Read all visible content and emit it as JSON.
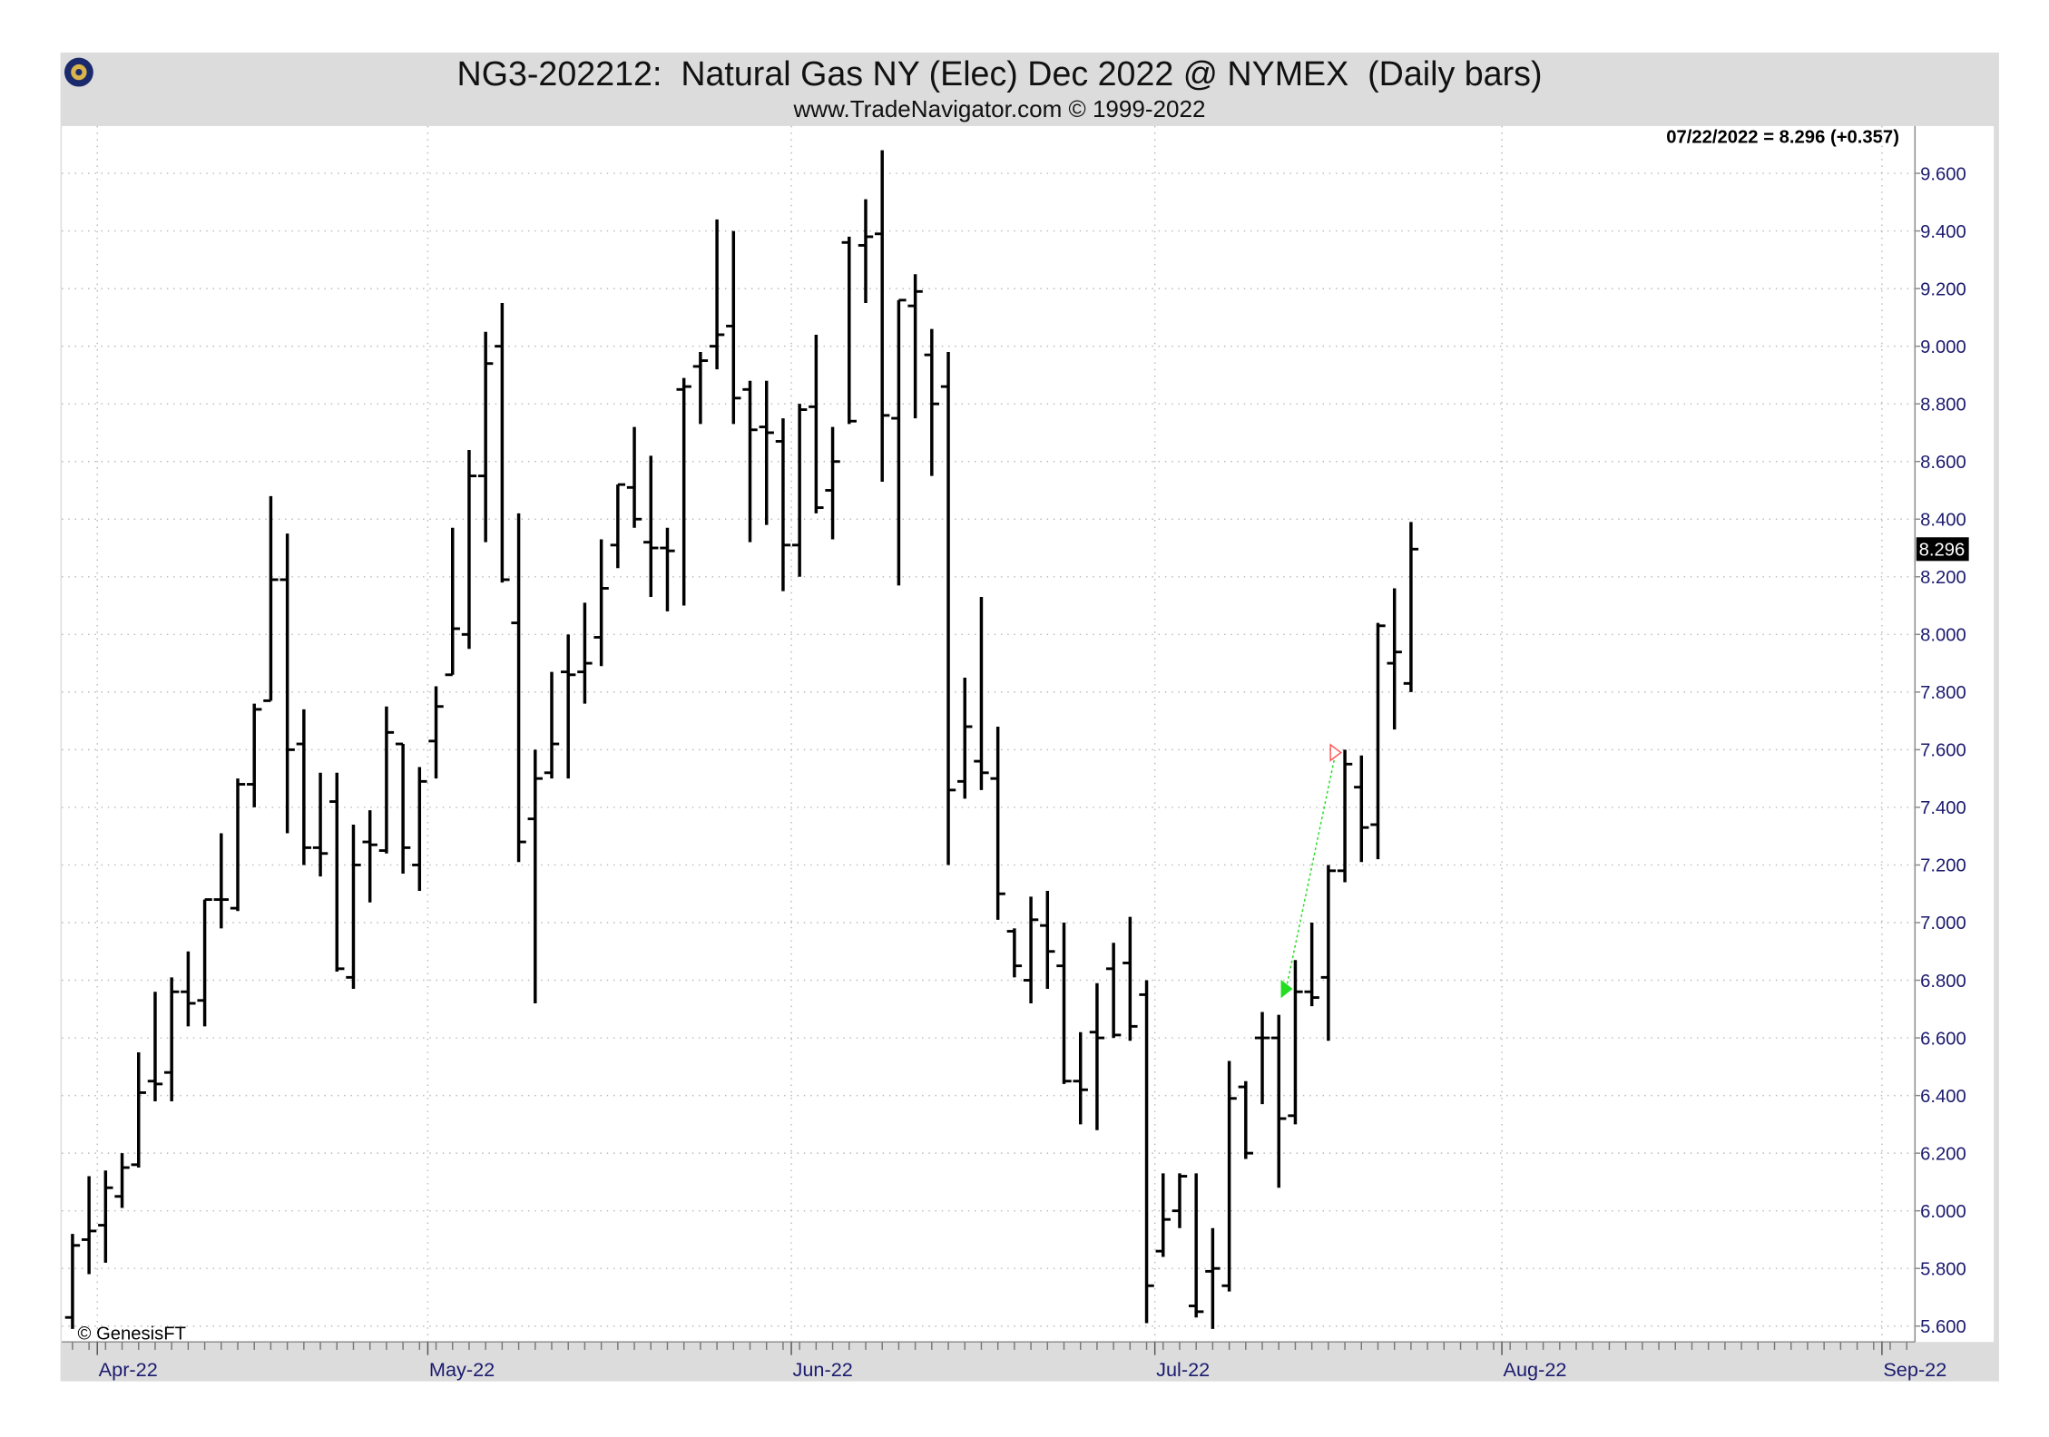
{
  "chart_data": {
    "type": "ohlc",
    "title": "NG3-202212:  Natural Gas NY (Elec) Dec 2022 @ NYMEX  (Daily bars)",
    "subtitle": "www.TradeNavigator.com © 1999-2022",
    "annotation": "07/22/2022 = 8.296 (+0.357)",
    "credit": "© GenesisFT",
    "color": "#000000",
    "grid": true,
    "categories": [
      null,
      null,
      "Apr-22",
      null,
      null,
      null,
      null,
      null,
      null,
      null,
      null,
      null,
      null,
      null,
      null,
      null,
      null,
      null,
      null,
      null,
      null,
      null,
      "May-22",
      null,
      null,
      null,
      null,
      null,
      null,
      null,
      null,
      null,
      null,
      null,
      null,
      null,
      null,
      null,
      null,
      null,
      null,
      null,
      null,
      null,
      "Jun-22",
      null,
      null,
      null,
      null,
      null,
      null,
      null,
      null,
      null,
      null,
      null,
      null,
      null,
      null,
      null,
      null,
      null,
      null,
      null,
      null,
      null,
      "Jul-22",
      null,
      null,
      null,
      null,
      null,
      null,
      null,
      null,
      null,
      null,
      null,
      null,
      null,
      null,
      null,
      null,
      null,
      null,
      null,
      null,
      "Aug-22",
      null,
      null,
      null,
      null,
      null,
      null,
      null,
      null,
      null,
      null,
      null,
      null,
      null,
      null,
      null,
      null,
      null,
      null,
      null,
      null,
      null,
      null,
      "Sep-22",
      null
    ],
    "open": [
      5.63,
      5.9,
      5.95,
      6.05,
      6.16,
      6.45,
      6.48,
      6.76,
      6.73,
      7.08,
      7.05,
      7.48,
      7.77,
      8.19,
      7.62,
      7.26,
      7.42,
      6.81,
      7.28,
      7.25,
      7.62,
      7.2,
      7.63,
      7.86,
      8.0,
      8.55,
      9.0,
      8.04,
      7.36,
      7.52,
      7.87,
      7.87,
      7.99,
      8.31,
      8.51,
      8.32,
      8.3,
      8.85,
      8.93,
      9.0,
      9.07,
      8.85,
      8.72,
      8.67,
      8.31,
      8.79,
      8.5,
      9.36,
      9.35,
      9.39,
      8.75,
      9.14,
      8.97,
      8.86,
      7.49,
      7.56,
      7.5,
      6.97,
      6.8,
      6.99,
      6.85,
      6.45,
      6.62,
      6.84,
      6.86,
      6.75,
      5.86,
      6.0,
      5.67,
      5.79,
      5.74,
      6.43,
      6.6,
      6.6,
      6.33,
      6.76,
      6.81,
      7.18,
      7.47,
      7.34,
      7.9,
      7.83,
      null,
      null,
      null,
      null,
      null,
      null,
      null,
      null,
      null,
      null,
      null,
      null,
      null,
      null,
      null,
      null,
      null,
      null,
      null,
      null,
      null,
      null,
      null,
      null,
      null,
      null,
      null,
      null,
      null,
      null
    ],
    "high": [
      5.92,
      6.12,
      6.14,
      6.2,
      6.55,
      6.76,
      6.81,
      6.9,
      7.08,
      7.31,
      7.5,
      7.76,
      8.48,
      8.35,
      7.74,
      7.52,
      7.52,
      7.34,
      7.39,
      7.75,
      7.62,
      7.54,
      7.82,
      8.37,
      8.64,
      9.05,
      9.15,
      8.42,
      7.6,
      7.87,
      8.0,
      8.11,
      8.33,
      8.52,
      8.72,
      8.62,
      8.37,
      8.89,
      8.98,
      9.44,
      9.4,
      8.88,
      8.88,
      8.75,
      8.8,
      9.04,
      8.72,
      9.38,
      9.51,
      9.68,
      9.16,
      9.25,
      9.06,
      8.98,
      7.85,
      8.13,
      7.68,
      6.98,
      7.09,
      7.11,
      7.0,
      6.62,
      6.79,
      6.93,
      7.02,
      6.8,
      6.13,
      6.13,
      6.13,
      5.94,
      6.52,
      6.45,
      6.69,
      6.68,
      6.87,
      7.0,
      7.2,
      7.6,
      7.58,
      8.04,
      8.16,
      8.39,
      null,
      null,
      null,
      null,
      null,
      null,
      null,
      null,
      null,
      null,
      null,
      null,
      null,
      null,
      null,
      null,
      null,
      null,
      null,
      null,
      null,
      null,
      null,
      null,
      null,
      null,
      null,
      null,
      null,
      null
    ],
    "low": [
      5.59,
      5.78,
      5.82,
      6.01,
      6.15,
      6.38,
      6.38,
      6.64,
      6.64,
      6.98,
      7.04,
      7.4,
      7.77,
      7.31,
      7.2,
      7.16,
      6.83,
      6.77,
      7.07,
      7.24,
      7.17,
      7.11,
      7.5,
      7.86,
      7.95,
      8.32,
      8.18,
      7.21,
      6.72,
      7.5,
      7.5,
      7.76,
      7.89,
      8.23,
      8.37,
      8.13,
      8.08,
      8.1,
      8.73,
      8.92,
      8.73,
      8.32,
      8.38,
      8.15,
      8.2,
      8.42,
      8.33,
      8.73,
      9.15,
      8.53,
      8.17,
      8.75,
      8.55,
      7.2,
      7.43,
      7.46,
      7.01,
      6.81,
      6.72,
      6.77,
      6.44,
      6.3,
      6.28,
      6.6,
      6.59,
      5.61,
      5.84,
      5.94,
      5.63,
      5.59,
      5.72,
      6.18,
      6.37,
      6.08,
      6.3,
      6.71,
      6.59,
      7.14,
      7.21,
      7.22,
      7.67,
      7.8,
      null,
      null,
      null,
      null,
      null,
      null,
      null,
      null,
      null,
      null,
      null,
      null,
      null,
      null,
      null,
      null,
      null,
      null,
      null,
      null,
      null,
      null,
      null,
      null,
      null,
      null,
      null,
      null,
      null,
      null
    ],
    "close": [
      5.88,
      5.93,
      6.08,
      6.15,
      6.41,
      6.44,
      6.76,
      6.72,
      7.08,
      7.08,
      7.48,
      7.74,
      8.19,
      7.6,
      7.26,
      7.24,
      6.84,
      7.2,
      7.27,
      7.66,
      7.26,
      7.49,
      7.75,
      8.02,
      8.55,
      8.94,
      8.19,
      7.28,
      7.5,
      7.62,
      7.86,
      7.9,
      8.16,
      8.52,
      8.4,
      8.3,
      8.29,
      8.86,
      8.95,
      9.04,
      8.82,
      8.71,
      8.7,
      8.31,
      8.78,
      8.44,
      8.6,
      8.74,
      9.38,
      8.76,
      9.16,
      9.19,
      8.8,
      7.46,
      7.68,
      7.52,
      7.1,
      6.85,
      7.01,
      6.9,
      6.45,
      6.42,
      6.6,
      6.61,
      6.64,
      5.74,
      5.97,
      6.12,
      5.65,
      5.8,
      6.39,
      6.2,
      6.6,
      6.32,
      6.76,
      6.74,
      7.18,
      7.55,
      7.33,
      8.03,
      7.939,
      8.296,
      null,
      null,
      null,
      null,
      null,
      null,
      null,
      null,
      null,
      null,
      null,
      null,
      null,
      null,
      null,
      null,
      null,
      null,
      null,
      null,
      null,
      null,
      null,
      null,
      null,
      null,
      null,
      null,
      null,
      null
    ],
    "signals": {
      "entry": {
        "index": 74,
        "value": 6.77,
        "color": "#22dd22"
      },
      "exit": {
        "index": 77,
        "value": 7.59,
        "color": "#ff5555"
      }
    },
    "ylim": [
      5.545,
      9.764
    ],
    "yticks": [
      {
        "value": 5.6,
        "label": "5.600"
      },
      {
        "value": 5.8,
        "label": "5.800"
      },
      {
        "value": 6.0,
        "label": "6.000"
      },
      {
        "value": 6.2,
        "label": "6.200"
      },
      {
        "value": 6.4,
        "label": "6.400"
      },
      {
        "value": 6.6,
        "label": "6.600"
      },
      {
        "value": 6.8,
        "label": "6.800"
      },
      {
        "value": 7.0,
        "label": "7.000"
      },
      {
        "value": 7.2,
        "label": "7.200"
      },
      {
        "value": 7.4,
        "label": "7.400"
      },
      {
        "value": 7.6,
        "label": "7.600"
      },
      {
        "value": 7.8,
        "label": "7.800"
      },
      {
        "value": 8.0,
        "label": "8.000"
      },
      {
        "value": 8.2,
        "label": "8.200"
      },
      {
        "value": 8.4,
        "label": "8.400"
      },
      {
        "value": 8.6,
        "label": "8.600"
      },
      {
        "value": 8.8,
        "label": "8.800"
      },
      {
        "value": 9.0,
        "label": "9.000"
      },
      {
        "value": 9.2,
        "label": "9.200"
      },
      {
        "value": 9.4,
        "label": "9.400"
      },
      {
        "value": 9.6,
        "label": "9.600"
      }
    ]
  }
}
